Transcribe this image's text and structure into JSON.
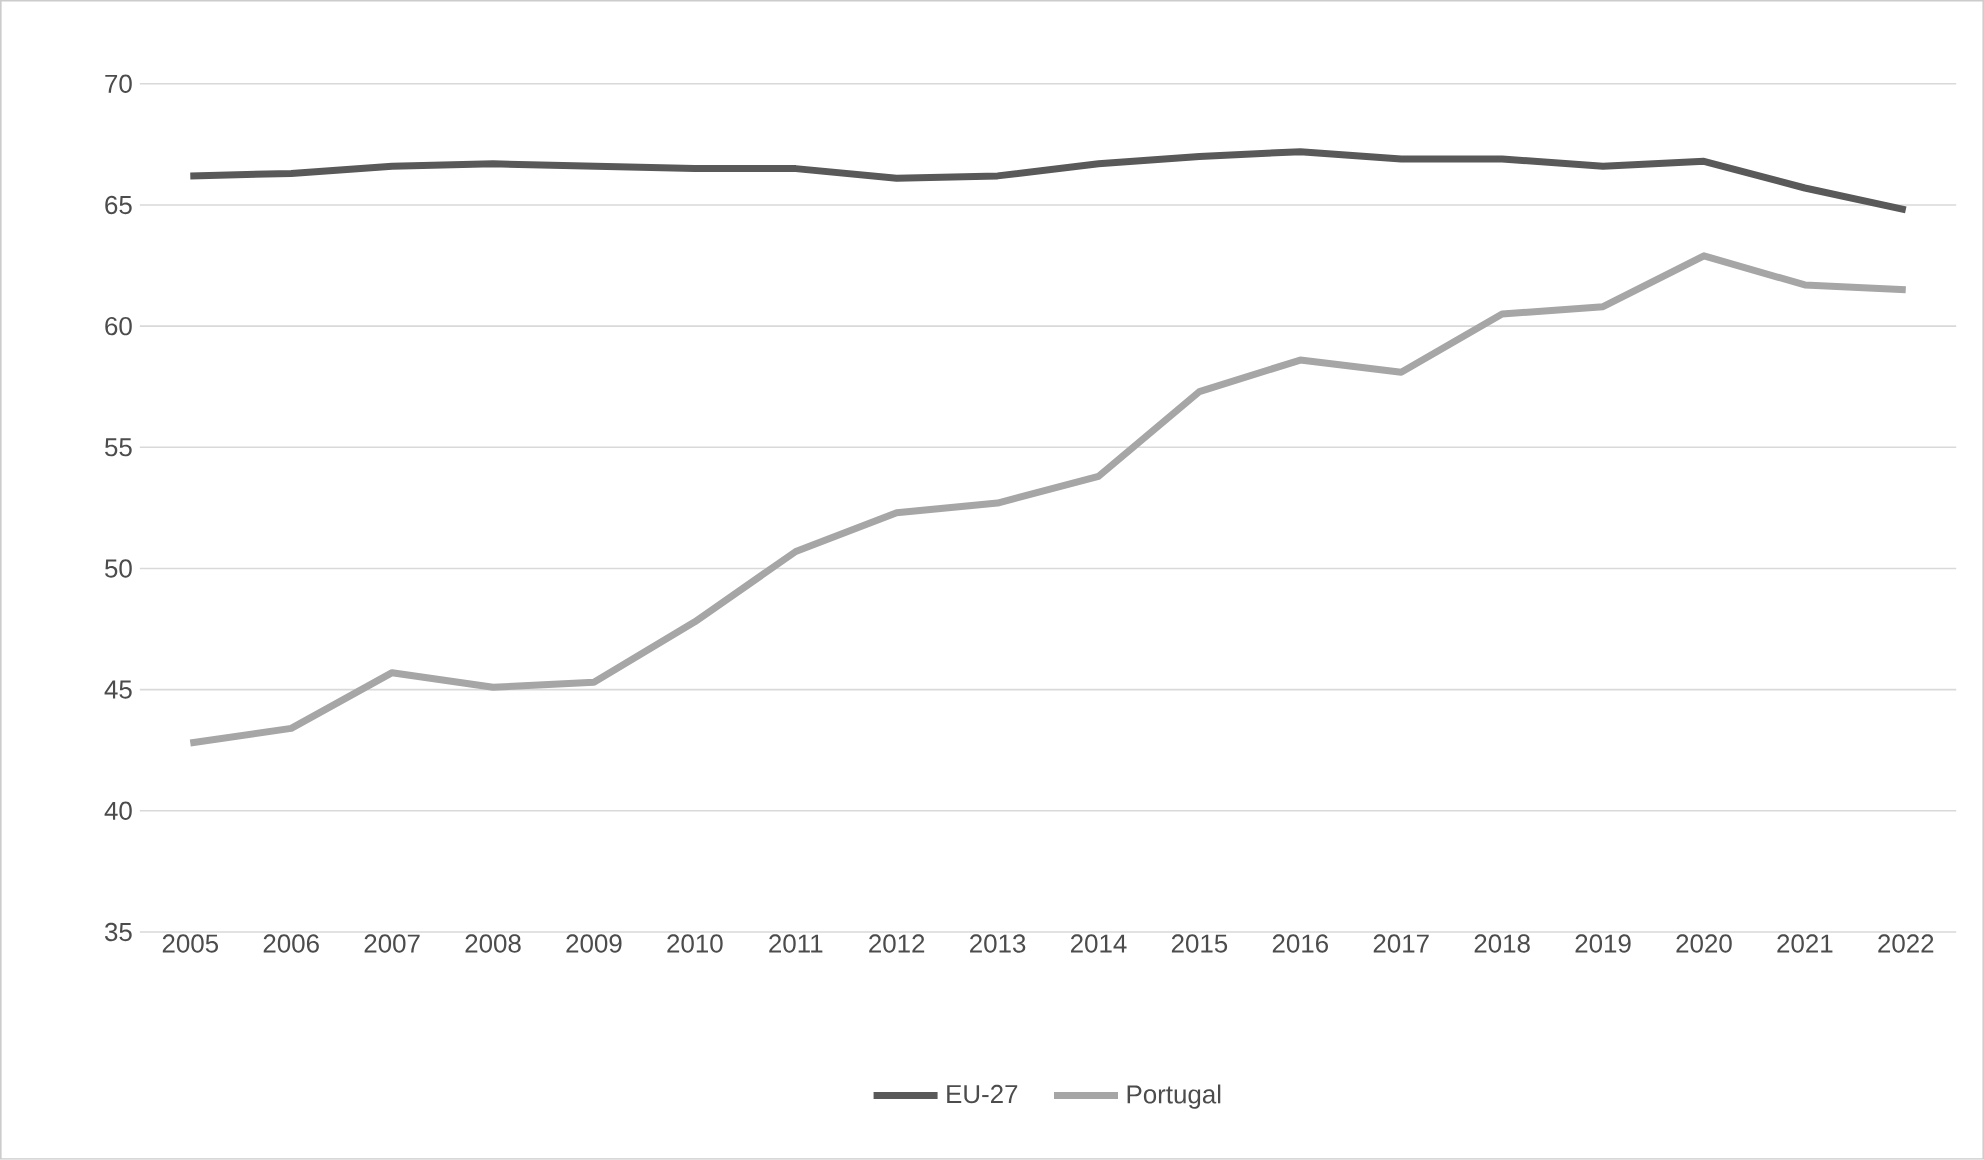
{
  "chart_data": {
    "type": "line",
    "categories": [
      "2005",
      "2006",
      "2007",
      "2008",
      "2009",
      "2010",
      "2011",
      "2012",
      "2013",
      "2014",
      "2015",
      "2016",
      "2017",
      "2018",
      "2019",
      "2020",
      "2021",
      "2022"
    ],
    "series": [
      {
        "name": "EU-27",
        "color": "#595959",
        "values": [
          66.2,
          66.3,
          66.6,
          66.7,
          66.6,
          66.5,
          66.5,
          66.1,
          66.2,
          66.7,
          67.0,
          67.2,
          66.9,
          66.9,
          66.6,
          66.8,
          65.7,
          64.8
        ]
      },
      {
        "name": "Portugal",
        "color": "#a6a6a6",
        "values": [
          42.8,
          43.4,
          45.7,
          45.1,
          45.3,
          47.8,
          50.7,
          52.3,
          52.7,
          53.8,
          57.3,
          58.6,
          58.1,
          60.5,
          60.8,
          62.9,
          61.7,
          61.5
        ]
      }
    ],
    "ylim": [
      35,
      70
    ],
    "yticks": [
      35,
      40,
      45,
      50,
      55,
      60,
      65,
      70
    ],
    "grid": "y",
    "legend": "bottom",
    "marker": "none",
    "line_style": "solid"
  }
}
